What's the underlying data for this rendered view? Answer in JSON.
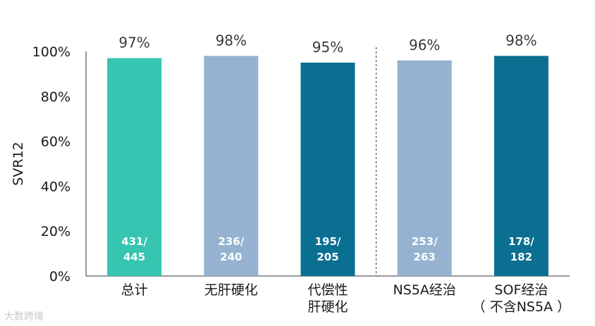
{
  "chart_data": {
    "type": "bar",
    "categories": [
      [
        "总计"
      ],
      [
        "无肝硬化"
      ],
      [
        "代偿性",
        "肝硬化"
      ],
      [
        "NS5A经治"
      ],
      [
        "SOF经治",
        "（ 不含NS5A ）"
      ]
    ],
    "values": [
      97,
      98,
      95,
      96,
      98
    ],
    "value_labels": [
      "97%",
      "98%",
      "95%",
      "96%",
      "98%"
    ],
    "counts": [
      [
        "431/",
        "445"
      ],
      [
        "236/",
        "240"
      ],
      [
        "195/",
        "205"
      ],
      [
        "253/",
        "263"
      ],
      [
        "178/",
        "182"
      ]
    ],
    "colors": [
      "#36c5b0",
      "#95b3d0",
      "#0a6f91",
      "#95b3d0",
      "#0a6f91"
    ],
    "ylabel": "SVR12",
    "ylim": [
      0,
      100
    ],
    "yticks": [
      "0%",
      "20%",
      "40%",
      "60%",
      "80%",
      "100%"
    ],
    "grid": false,
    "separator_after_index": 2
  },
  "watermark": "大数跨境"
}
